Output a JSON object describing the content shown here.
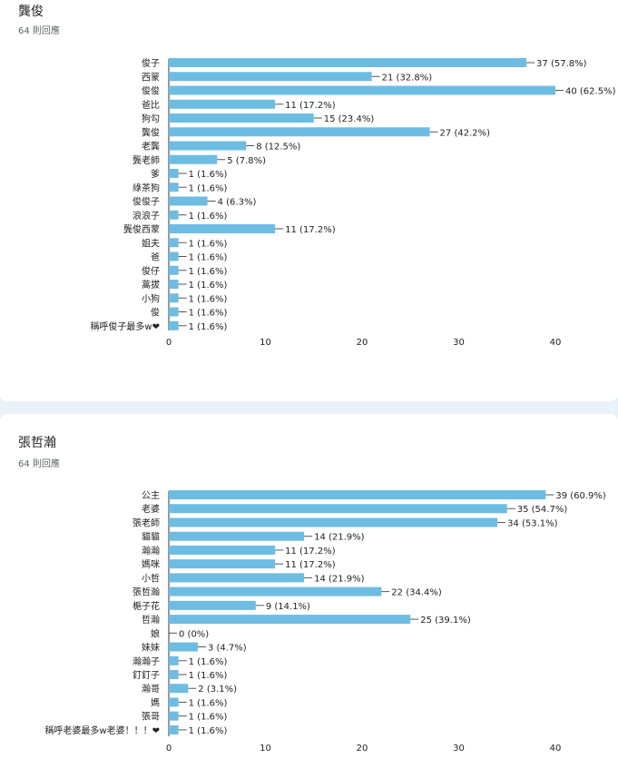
{
  "chart_data": [
    {
      "type": "bar",
      "orientation": "horizontal",
      "title": "龔俊",
      "response_count": "64 則回應",
      "xlim": [
        0,
        40
      ],
      "xticks": [
        "0",
        "10",
        "20",
        "30",
        "40"
      ],
      "color": "#6dbde3",
      "categories": [
        "俊子",
        "西蒙",
        "俊俊",
        "爸比",
        "狗勾",
        "龔俊",
        "老龔",
        "龔老師",
        "爹",
        "綠茶狗",
        "俊俊子",
        "浪浪子",
        "龔俊西蒙",
        "姐夫",
        "爸",
        "俊仔",
        "蒿拔",
        "小狗",
        "俊",
        "稱呼俊子最多w❤"
      ],
      "values": [
        37,
        21,
        40,
        11,
        15,
        27,
        8,
        5,
        1,
        1,
        4,
        1,
        11,
        1,
        1,
        1,
        1,
        1,
        1,
        1
      ],
      "labels": [
        "37 (57.8%)",
        "21 (32.8%)",
        "40 (62.5%)",
        "11 (17.2%)",
        "15 (23.4%)",
        "27 (42.2%)",
        "8 (12.5%)",
        "5 (7.8%)",
        "1 (1.6%)",
        "1 (1.6%)",
        "4 (6.3%)",
        "1 (1.6%)",
        "11 (17.2%)",
        "1 (1.6%)",
        "1 (1.6%)",
        "1 (1.6%)",
        "1 (1.6%)",
        "1 (1.6%)",
        "1 (1.6%)",
        "1 (1.6%)"
      ]
    },
    {
      "type": "bar",
      "orientation": "horizontal",
      "title": "張哲瀚",
      "response_count": "64 則回應",
      "xlim": [
        0,
        40
      ],
      "xticks": [
        "0",
        "10",
        "20",
        "30",
        "40"
      ],
      "color": "#6dbde3",
      "categories": [
        "公主",
        "老婆",
        "張老師",
        "貓貓",
        "瀚瀚",
        "媽咪",
        "小哲",
        "張哲瀚",
        "梔子花",
        "哲瀚",
        "娘",
        "妹妹",
        "瀚瀚子",
        "釘釘子",
        "瀚哥",
        "媽",
        "張哥",
        "稱呼老婆最多w老婆！！！❤"
      ],
      "values": [
        39,
        35,
        34,
        14,
        11,
        11,
        14,
        22,
        9,
        25,
        0,
        3,
        1,
        1,
        2,
        1,
        1,
        1
      ],
      "labels": [
        "39 (60.9%)",
        "35 (54.7%)",
        "34 (53.1%)",
        "14 (21.9%)",
        "11 (17.2%)",
        "11 (17.2%)",
        "14 (21.9%)",
        "22 (34.4%)",
        "9 (14.1%)",
        "25 (39.1%)",
        "0 (0%)",
        "3 (4.7%)",
        "1 (1.6%)",
        "1 (1.6%)",
        "2 (3.1%)",
        "1 (1.6%)",
        "1 (1.6%)",
        "1 (1.6%)"
      ]
    }
  ]
}
